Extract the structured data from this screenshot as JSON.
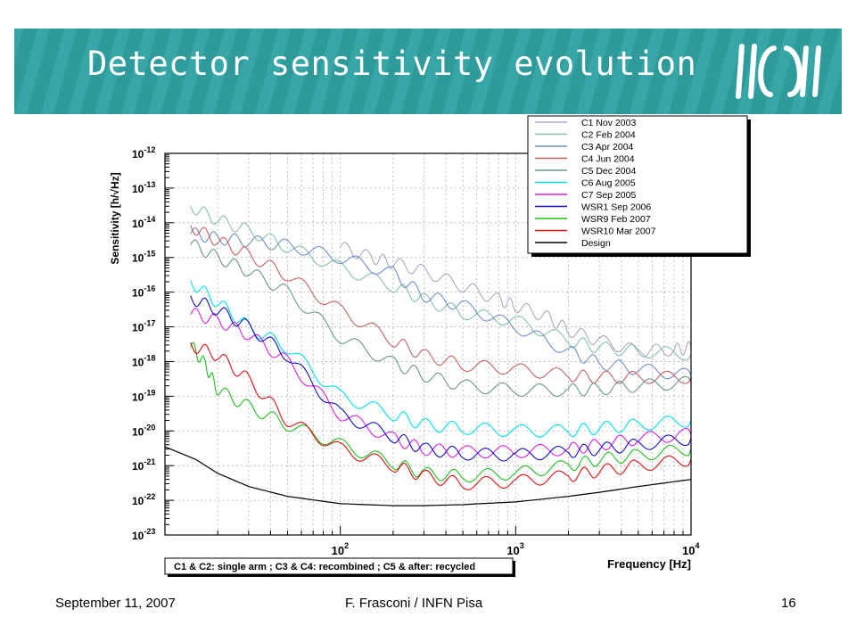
{
  "slide": {
    "title": "Detector sensitivity evolution",
    "colors": {
      "banner": "#2e9a9a",
      "banner_stripe": "#3eb0b0",
      "title_text": "#ffffff"
    }
  },
  "logo": {
    "icon": "virgo-logo-icon"
  },
  "footer": {
    "date": "September 11, 2007",
    "author": "F. Frasconi / INFN Pisa",
    "page": "16"
  },
  "chart_data": {
    "type": "line",
    "xlabel": "Frequency [Hz]",
    "ylabel": "Sensitivity [h/√Hz]",
    "xscale": "log",
    "yscale": "log",
    "xlim": [
      10,
      10000
    ],
    "ylim": [
      1e-23,
      1e-12
    ],
    "x_tick_labels": [
      {
        "value": 100,
        "base": "10",
        "exp": "2"
      },
      {
        "value": 1000,
        "base": "10",
        "exp": "3"
      },
      {
        "value": 10000,
        "base": "10",
        "exp": "4"
      }
    ],
    "y_tick_labels": [
      {
        "value": 1e-12,
        "base": "10",
        "exp": "-12"
      },
      {
        "value": 1e-13,
        "base": "10",
        "exp": "-13"
      },
      {
        "value": 1e-14,
        "base": "10",
        "exp": "-14"
      },
      {
        "value": 1e-15,
        "base": "10",
        "exp": "-15"
      },
      {
        "value": 1e-16,
        "base": "10",
        "exp": "-16"
      },
      {
        "value": 1e-17,
        "base": "10",
        "exp": "-17"
      },
      {
        "value": 1e-18,
        "base": "10",
        "exp": "-18"
      },
      {
        "value": 1e-19,
        "base": "10",
        "exp": "-19"
      },
      {
        "value": 1e-20,
        "base": "10",
        "exp": "-20"
      },
      {
        "value": 1e-21,
        "base": "10",
        "exp": "-21"
      },
      {
        "value": 1e-22,
        "base": "10",
        "exp": "-22"
      },
      {
        "value": 1e-23,
        "base": "10",
        "exp": "-23"
      }
    ],
    "grid": true,
    "legend_position": "top-right",
    "annotation": "C1 & C2: single arm ; C3 & C4: recombined ; C5 & after: recycled",
    "series": [
      {
        "name": "C1 Nov 2003",
        "color": "#a9a9c8",
        "points": [
          [
            100,
            2e-15
          ],
          [
            150,
            1e-15
          ],
          [
            200,
            7e-16
          ],
          [
            300,
            4e-16
          ],
          [
            500,
            1.5e-16
          ],
          [
            800,
            6e-17
          ],
          [
            1000,
            4e-17
          ],
          [
            1500,
            2e-17
          ],
          [
            2000,
            8e-18
          ],
          [
            3000,
            4e-18
          ],
          [
            5000,
            2e-18
          ],
          [
            8000,
            2.2e-18
          ],
          [
            10000,
            2.5e-18
          ]
        ]
      },
      {
        "name": "C2 Feb 2004",
        "color": "#86c0a8",
        "points": [
          [
            14,
            3e-14
          ],
          [
            20,
            1.2e-14
          ],
          [
            30,
            6e-15
          ],
          [
            50,
            2e-15
          ],
          [
            100,
            5e-16
          ],
          [
            200,
            1.5e-16
          ],
          [
            300,
            6e-17
          ],
          [
            500,
            2.5e-17
          ],
          [
            1000,
            1.5e-17
          ],
          [
            2000,
            4e-18
          ],
          [
            3000,
            2.5e-18
          ],
          [
            5000,
            2e-18
          ],
          [
            10000,
            1.6e-18
          ]
        ]
      },
      {
        "name": "C3 Apr 2004",
        "color": "#7090c8",
        "points": [
          [
            14,
            5e-15
          ],
          [
            20,
            3.5e-15
          ],
          [
            30,
            3e-15
          ],
          [
            50,
            2.2e-15
          ],
          [
            100,
            1e-15
          ],
          [
            200,
            3.5e-16
          ],
          [
            300,
            8e-17
          ],
          [
            500,
            4e-17
          ],
          [
            1000,
            1e-17
          ],
          [
            2000,
            2e-18
          ],
          [
            3000,
            9e-19
          ],
          [
            5000,
            6e-19
          ],
          [
            10000,
            4e-19
          ]
        ]
      },
      {
        "name": "C4 Jun 2004",
        "color": "#c86060",
        "points": [
          [
            14,
            8e-15
          ],
          [
            20,
            3e-15
          ],
          [
            30,
            1.2e-15
          ],
          [
            50,
            3e-16
          ],
          [
            100,
            3e-17
          ],
          [
            200,
            4e-18
          ],
          [
            300,
            1.5e-18
          ],
          [
            500,
            8e-19
          ],
          [
            1000,
            6e-19
          ],
          [
            2000,
            4e-19
          ],
          [
            3000,
            3.5e-19
          ],
          [
            5000,
            3.5e-19
          ],
          [
            10000,
            3.5e-19
          ]
        ]
      },
      {
        "name": "C5 Dec 2004",
        "color": "#6a9a80",
        "points": [
          [
            14,
            2.5e-15
          ],
          [
            20,
            1e-15
          ],
          [
            30,
            4e-16
          ],
          [
            50,
            1e-16
          ],
          [
            100,
            5e-18
          ],
          [
            200,
            9e-19
          ],
          [
            300,
            4e-19
          ],
          [
            500,
            2e-19
          ],
          [
            1000,
            1.5e-19
          ],
          [
            2000,
            1.5e-19
          ],
          [
            3000,
            1.6e-19
          ],
          [
            5000,
            2e-19
          ],
          [
            10000,
            2.5e-19
          ]
        ]
      },
      {
        "name": "C6 Aug 2005",
        "color": "#00e0e8",
        "points": [
          [
            14,
            2e-16
          ],
          [
            20,
            5e-17
          ],
          [
            30,
            1e-17
          ],
          [
            50,
            2.5e-18
          ],
          [
            100,
            1e-19
          ],
          [
            200,
            3e-20
          ],
          [
            300,
            1.5e-20
          ],
          [
            500,
            1.2e-20
          ],
          [
            1000,
            1e-20
          ],
          [
            2000,
            1e-20
          ],
          [
            3000,
            1.2e-20
          ],
          [
            5000,
            1.5e-20
          ],
          [
            10000,
            2e-20
          ]
        ]
      },
      {
        "name": "C7 Sep 2005",
        "color": "#e020e0",
        "points": [
          [
            14,
            2.5e-17
          ],
          [
            20,
            1.5e-17
          ],
          [
            30,
            6e-18
          ],
          [
            50,
            1e-18
          ],
          [
            100,
            3e-20
          ],
          [
            200,
            6e-21
          ],
          [
            300,
            3e-21
          ],
          [
            500,
            2.5e-21
          ],
          [
            1000,
            2.5e-21
          ],
          [
            2000,
            3e-21
          ],
          [
            3000,
            4e-21
          ],
          [
            5000,
            6e-21
          ],
          [
            10000,
            8e-21
          ]
        ]
      },
      {
        "name": "WSR1 Sep 2006",
        "color": "#1010c8",
        "points": [
          [
            14,
            7e-17
          ],
          [
            20,
            3e-17
          ],
          [
            30,
            1e-17
          ],
          [
            50,
            1.5e-18
          ],
          [
            100,
            3e-20
          ],
          [
            200,
            7e-21
          ],
          [
            300,
            3e-21
          ],
          [
            500,
            2.2e-21
          ],
          [
            1000,
            2e-21
          ],
          [
            2000,
            2.5e-21
          ],
          [
            3000,
            3e-21
          ],
          [
            5000,
            4e-21
          ],
          [
            10000,
            6e-21
          ]
        ]
      },
      {
        "name": "WSR9 Feb 2007",
        "color": "#20c020",
        "points": [
          [
            14,
            3e-18
          ],
          [
            17,
            8e-19
          ],
          [
            20,
            1.5e-19
          ],
          [
            30,
            5e-20
          ],
          [
            50,
            1.5e-20
          ],
          [
            100,
            4e-21
          ],
          [
            200,
            1.2e-21
          ],
          [
            300,
            6e-22
          ],
          [
            500,
            5e-22
          ],
          [
            1000,
            6e-22
          ],
          [
            2000,
            1e-21
          ],
          [
            3000,
            1.5e-21
          ],
          [
            5000,
            2e-21
          ],
          [
            10000,
            3e-21
          ]
        ]
      },
      {
        "name": "WSR10 Mar 2007",
        "color": "#e01010",
        "points": [
          [
            14,
            3e-18
          ],
          [
            20,
            1.5e-18
          ],
          [
            30,
            3e-19
          ],
          [
            50,
            2e-20
          ],
          [
            100,
            3e-21
          ],
          [
            200,
            1e-21
          ],
          [
            300,
            5e-22
          ],
          [
            500,
            3e-22
          ],
          [
            1000,
            3.5e-22
          ],
          [
            2000,
            5e-22
          ],
          [
            3000,
            7e-22
          ],
          [
            5000,
            1e-21
          ],
          [
            10000,
            1.5e-21
          ]
        ]
      },
      {
        "name": "Design",
        "color": "#000000",
        "points": [
          [
            10,
            3.5e-21
          ],
          [
            15,
            1.5e-21
          ],
          [
            20,
            6e-22
          ],
          [
            30,
            2.5e-22
          ],
          [
            50,
            1.3e-22
          ],
          [
            100,
            8e-23
          ],
          [
            200,
            7e-23
          ],
          [
            300,
            7e-23
          ],
          [
            500,
            7.5e-23
          ],
          [
            1000,
            9e-23
          ],
          [
            2000,
            1.3e-22
          ],
          [
            3000,
            1.7e-22
          ],
          [
            5000,
            2.5e-22
          ],
          [
            10000,
            4e-22
          ]
        ]
      }
    ]
  }
}
